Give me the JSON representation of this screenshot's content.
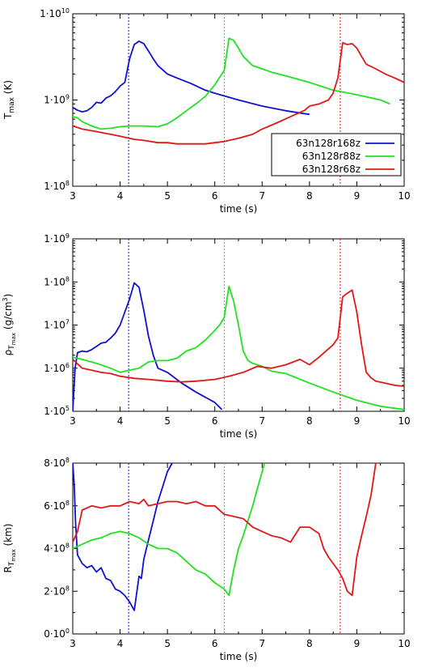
{
  "colors": {
    "blue": "#1010d0",
    "green": "#22e022",
    "red": "#e01818"
  },
  "chart_data": [
    {
      "type": "line",
      "ylog": true,
      "xlabel": "time (s)",
      "ylabel": "T_max (K)",
      "xlim": [
        3,
        10
      ],
      "ylim": [
        100000000.0,
        10000000000.0
      ],
      "xticks": [
        "3",
        "4",
        "5",
        "6",
        "7",
        "8",
        "9",
        "10"
      ],
      "yticks": [
        {
          "value": 10000000000.0,
          "mant": "1·10",
          "exp": "10"
        },
        {
          "value": 1000000000.0,
          "mant": "1·10",
          "exp": "9"
        },
        {
          "value": 100000000.0,
          "mant": "1·10",
          "exp": "8"
        }
      ],
      "legend": {
        "position": "bottom-right",
        "entries": [
          "63n128r168z",
          "63n128r88z",
          "63n128r68z"
        ]
      },
      "vlines": [
        4.18,
        6.2,
        8.65
      ],
      "series": [
        {
          "name": "63n128r168z",
          "color": "#1010d0",
          "x": [
            3.0,
            3.1,
            3.2,
            3.3,
            3.4,
            3.5,
            3.6,
            3.7,
            3.8,
            3.9,
            4.0,
            4.1,
            4.2,
            4.3,
            4.4,
            4.5,
            4.6,
            4.7,
            4.8,
            5.0,
            5.2,
            5.5,
            5.8,
            6.0,
            6.5,
            7.0,
            7.5,
            8.0
          ],
          "y": [
            820000000.0,
            760000000.0,
            730000000.0,
            750000000.0,
            820000000.0,
            940000000.0,
            920000000.0,
            1050000000.0,
            1120000000.0,
            1250000000.0,
            1450000000.0,
            1600000000.0,
            3000000000.0,
            4400000000.0,
            4800000000.0,
            4500000000.0,
            3700000000.0,
            3000000000.0,
            2500000000.0,
            2000000000.0,
            1800000000.0,
            1550000000.0,
            1300000000.0,
            1200000000.0,
            1000000000.0,
            850000000.0,
            750000000.0,
            680000000.0
          ]
        },
        {
          "name": "63n128r88z",
          "color": "#22e022",
          "x": [
            3.0,
            3.1,
            3.2,
            3.4,
            3.6,
            3.8,
            4.0,
            4.2,
            4.5,
            4.8,
            5.0,
            5.2,
            5.4,
            5.6,
            5.8,
            6.0,
            6.2,
            6.3,
            6.4,
            6.5,
            6.6,
            6.8,
            7.0,
            7.2,
            7.5,
            8.0,
            8.5,
            9.0,
            9.5,
            9.7
          ],
          "y": [
            640000000.0,
            620000000.0,
            560000000.0,
            500000000.0,
            460000000.0,
            470000000.0,
            490000000.0,
            500000000.0,
            500000000.0,
            490000000.0,
            530000000.0,
            620000000.0,
            750000000.0,
            900000000.0,
            1100000000.0,
            1500000000.0,
            2200000000.0,
            5200000000.0,
            4900000000.0,
            4000000000.0,
            3200000000.0,
            2500000000.0,
            2300000000.0,
            2100000000.0,
            1900000000.0,
            1600000000.0,
            1300000000.0,
            1150000000.0,
            1000000000.0,
            900000000.0
          ]
        },
        {
          "name": "63n128r68z",
          "color": "#e01818",
          "x": [
            3.0,
            3.2,
            3.5,
            3.8,
            4.0,
            4.3,
            4.5,
            4.8,
            5.0,
            5.2,
            5.5,
            5.8,
            6.0,
            6.2,
            6.5,
            6.8,
            7.0,
            7.3,
            7.6,
            7.9,
            8.0,
            8.2,
            8.4,
            8.5,
            8.6,
            8.7,
            8.8,
            8.9,
            9.0,
            9.1,
            9.2,
            9.4,
            9.6,
            9.8,
            10.0
          ],
          "y": [
            500000000.0,
            460000000.0,
            430000000.0,
            400000000.0,
            380000000.0,
            350000000.0,
            340000000.0,
            320000000.0,
            320000000.0,
            310000000.0,
            310000000.0,
            310000000.0,
            320000000.0,
            330000000.0,
            360000000.0,
            400000000.0,
            460000000.0,
            540000000.0,
            640000000.0,
            760000000.0,
            850000000.0,
            900000000.0,
            1000000000.0,
            1200000000.0,
            1800000000.0,
            4600000000.0,
            4400000000.0,
            4500000000.0,
            4000000000.0,
            3200000000.0,
            2600000000.0,
            2300000000.0,
            2000000000.0,
            1800000000.0,
            1600000000.0
          ]
        }
      ]
    },
    {
      "type": "line",
      "ylog": true,
      "xlabel": "time (s)",
      "ylabel": "ρ_Tmax (g/cm³)",
      "xlim": [
        3,
        10
      ],
      "ylim": [
        100000.0,
        1000000000.0
      ],
      "xticks": [
        "3",
        "4",
        "5",
        "6",
        "7",
        "8",
        "9",
        "10"
      ],
      "yticks": [
        {
          "value": 1000000000.0,
          "mant": "1·10",
          "exp": "9"
        },
        {
          "value": 100000000.0,
          "mant": "1·10",
          "exp": "8"
        },
        {
          "value": 10000000.0,
          "mant": "1·10",
          "exp": "7"
        },
        {
          "value": 1000000.0,
          "mant": "1·10",
          "exp": "6"
        },
        {
          "value": 100000.0,
          "mant": "1·10",
          "exp": "5"
        }
      ],
      "vlines": [
        4.18,
        6.2,
        8.65
      ],
      "series": [
        {
          "name": "63n128r168z",
          "color": "#1010d0",
          "x": [
            3.0,
            3.05,
            3.1,
            3.2,
            3.3,
            3.4,
            3.5,
            3.6,
            3.7,
            3.8,
            3.9,
            4.0,
            4.1,
            4.2,
            4.3,
            4.4,
            4.5,
            4.6,
            4.7,
            4.8,
            5.0,
            5.3,
            5.6,
            6.0,
            6.15
          ],
          "y": [
            100000.0,
            1000000.0,
            2300000.0,
            2500000.0,
            2400000.0,
            2700000.0,
            3200000.0,
            3800000.0,
            4000000.0,
            5000000.0,
            6500000.0,
            10000000.0,
            20000000.0,
            40000000.0,
            95000000.0,
            75000000.0,
            22000000.0,
            5500000.0,
            2000000.0,
            1000000.0,
            800000.0,
            450000.0,
            280000.0,
            160000.0,
            110000.0
          ]
        },
        {
          "name": "63n128r88z",
          "color": "#22e022",
          "x": [
            3.0,
            3.2,
            3.5,
            3.8,
            4.0,
            4.2,
            4.4,
            4.6,
            4.8,
            5.0,
            5.2,
            5.4,
            5.6,
            5.8,
            6.0,
            6.1,
            6.2,
            6.3,
            6.4,
            6.5,
            6.6,
            6.7,
            6.8,
            7.0,
            7.2,
            7.5,
            8.0,
            8.5,
            9.0,
            9.5,
            10.0
          ],
          "y": [
            1800000.0,
            1600000.0,
            1300000.0,
            1000000.0,
            800000.0,
            900000.0,
            1000000.0,
            1400000.0,
            1500000.0,
            1500000.0,
            1700000.0,
            2500000.0,
            3000000.0,
            4500000.0,
            7500000.0,
            10000000.0,
            15000000.0,
            80000000.0,
            35000000.0,
            10000000.0,
            2500000.0,
            1500000.0,
            1300000.0,
            1100000.0,
            850000.0,
            750000.0,
            450000.0,
            280000.0,
            180000.0,
            130000.0,
            110000.0
          ]
        },
        {
          "name": "63n128r68z",
          "color": "#e01818",
          "x": [
            3.0,
            3.2,
            3.4,
            3.6,
            3.8,
            4.0,
            4.3,
            4.6,
            5.0,
            5.3,
            5.6,
            6.0,
            6.3,
            6.6,
            6.9,
            7.2,
            7.5,
            7.8,
            8.0,
            8.2,
            8.4,
            8.5,
            8.6,
            8.7,
            8.8,
            8.9,
            9.0,
            9.1,
            9.2,
            9.3,
            9.4,
            9.6,
            9.8,
            10.0
          ],
          "y": [
            1600000.0,
            1000000.0,
            900000.0,
            800000.0,
            750000.0,
            650000.0,
            580000.0,
            550000.0,
            500000.0,
            480000.0,
            500000.0,
            550000.0,
            650000.0,
            800000.0,
            1100000.0,
            1000000.0,
            1200000.0,
            1600000.0,
            1200000.0,
            1800000.0,
            2800000.0,
            3500000.0,
            5000000.0,
            45000000.0,
            55000000.0,
            65000000.0,
            20000000.0,
            3500000.0,
            800000.0,
            600000.0,
            500000.0,
            450000.0,
            400000.0,
            380000.0
          ]
        }
      ]
    },
    {
      "type": "line",
      "ylog": false,
      "xlabel": "time (s)",
      "ylabel": "R_Tmax (km)",
      "xlim": [
        3,
        10
      ],
      "ylim": [
        0,
        800000000.0
      ],
      "xticks": [
        "3",
        "4",
        "5",
        "6",
        "7",
        "8",
        "9",
        "10"
      ],
      "yticks": [
        {
          "value": 800000000.0,
          "mant": "8·10",
          "exp": "8"
        },
        {
          "value": 600000000.0,
          "mant": "6·10",
          "exp": "8"
        },
        {
          "value": 400000000.0,
          "mant": "4·10",
          "exp": "8"
        },
        {
          "value": 200000000.0,
          "mant": "2·10",
          "exp": "8"
        },
        {
          "value": 0,
          "mant": "0·10",
          "exp": "0"
        }
      ],
      "vlines": [
        4.18,
        6.2,
        8.65
      ],
      "series": [
        {
          "name": "63n128r168z",
          "color": "#1010d0",
          "x": [
            3.0,
            3.03,
            3.06,
            3.1,
            3.2,
            3.3,
            3.4,
            3.5,
            3.6,
            3.7,
            3.8,
            3.9,
            4.0,
            4.1,
            4.2,
            4.3,
            4.4,
            4.45,
            4.5,
            4.6,
            4.7,
            4.8,
            4.9,
            5.0,
            5.1
          ],
          "y": [
            800000000.0,
            700000000.0,
            520000000.0,
            370000000.0,
            330000000.0,
            310000000.0,
            320000000.0,
            290000000.0,
            310000000.0,
            260000000.0,
            250000000.0,
            210000000.0,
            200000000.0,
            180000000.0,
            150000000.0,
            110000000.0,
            270000000.0,
            260000000.0,
            350000000.0,
            440000000.0,
            530000000.0,
            620000000.0,
            690000000.0,
            760000000.0,
            800000000.0
          ]
        },
        {
          "name": "63n128r88z",
          "color": "#22e022",
          "x": [
            3.0,
            3.2,
            3.4,
            3.6,
            3.8,
            4.0,
            4.2,
            4.4,
            4.6,
            4.8,
            5.0,
            5.2,
            5.4,
            5.6,
            5.8,
            6.0,
            6.2,
            6.3,
            6.4,
            6.5,
            6.6,
            6.7,
            6.8,
            6.9,
            7.0,
            7.05
          ],
          "y": [
            400000000.0,
            420000000.0,
            440000000.0,
            450000000.0,
            470000000.0,
            480000000.0,
            470000000.0,
            450000000.0,
            420000000.0,
            400000000.0,
            400000000.0,
            380000000.0,
            340000000.0,
            300000000.0,
            280000000.0,
            240000000.0,
            210000000.0,
            180000000.0,
            300000000.0,
            400000000.0,
            460000000.0,
            530000000.0,
            600000000.0,
            680000000.0,
            760000000.0,
            800000000.0
          ]
        },
        {
          "name": "63n128r68z",
          "color": "#e01818",
          "x": [
            3.0,
            3.1,
            3.2,
            3.4,
            3.6,
            3.8,
            4.0,
            4.2,
            4.4,
            4.5,
            4.6,
            4.8,
            5.0,
            5.2,
            5.4,
            5.6,
            5.8,
            6.0,
            6.2,
            6.4,
            6.6,
            6.8,
            7.0,
            7.2,
            7.4,
            7.6,
            7.8,
            8.0,
            8.2,
            8.3,
            8.4,
            8.5,
            8.6,
            8.7,
            8.8,
            8.9,
            9.0,
            9.1,
            9.2,
            9.3,
            9.4
          ],
          "y": [
            430000000.0,
            480000000.0,
            580000000.0,
            600000000.0,
            590000000.0,
            600000000.0,
            600000000.0,
            620000000.0,
            610000000.0,
            630000000.0,
            600000000.0,
            610000000.0,
            620000000.0,
            620000000.0,
            610000000.0,
            620000000.0,
            600000000.0,
            600000000.0,
            560000000.0,
            550000000.0,
            540000000.0,
            500000000.0,
            480000000.0,
            460000000.0,
            450000000.0,
            430000000.0,
            500000000.0,
            500000000.0,
            470000000.0,
            400000000.0,
            360000000.0,
            330000000.0,
            300000000.0,
            260000000.0,
            200000000.0,
            180000000.0,
            360000000.0,
            460000000.0,
            550000000.0,
            650000000.0,
            800000000.0
          ]
        }
      ]
    }
  ]
}
